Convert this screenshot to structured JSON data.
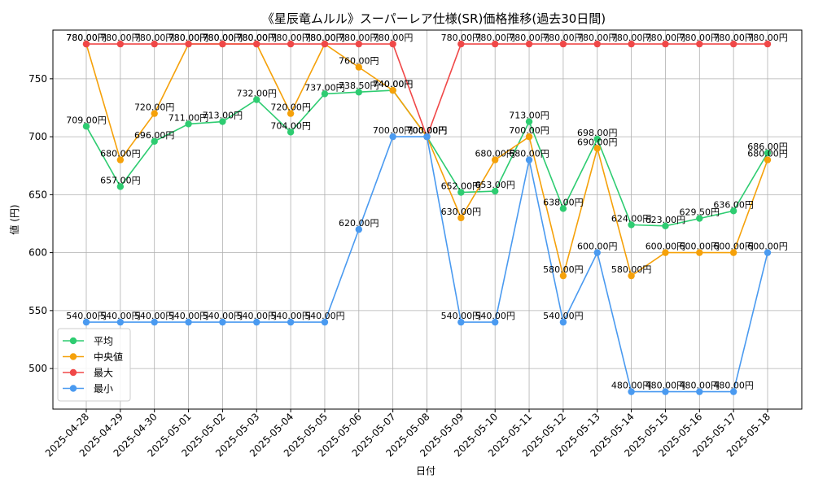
{
  "chart_data": {
    "type": "line",
    "title": "《星辰竜ムルル》スーパーレア仕様(SR)価格推移(過去30日間)",
    "xlabel": "日付",
    "ylabel": "値 (円)",
    "ylim": [
      465,
      792
    ],
    "yticks": [
      500,
      550,
      600,
      650,
      700,
      750
    ],
    "grid": true,
    "legend_position": "bottom-left",
    "value_suffix": "円",
    "categories": [
      "2025-04-28",
      "2025-04-29",
      "2025-04-30",
      "2025-05-01",
      "2025-05-02",
      "2025-05-03",
      "2025-05-04",
      "2025-05-05",
      "2025-05-06",
      "2025-05-07",
      "2025-05-08",
      "2025-05-09",
      "2025-05-10",
      "2025-05-11",
      "2025-05-12",
      "2025-05-13",
      "2025-05-14",
      "2025-05-15",
      "2025-05-16",
      "2025-05-17",
      "2025-05-18"
    ],
    "series": [
      {
        "name": "平均",
        "color": "#2ecc71",
        "values": [
          709,
          657,
          696,
          711,
          713,
          732,
          704,
          737,
          738.5,
          740,
          700,
          652,
          653,
          713,
          638,
          698,
          624,
          623,
          629.5,
          636,
          686
        ]
      },
      {
        "name": "中央値",
        "color": "#f5a10a",
        "values": [
          780,
          680,
          720,
          780,
          780,
          780,
          720,
          780,
          760,
          740,
          700,
          630,
          680,
          700,
          580,
          690,
          580,
          600,
          600,
          600,
          680
        ]
      },
      {
        "name": "最大",
        "color": "#f04848",
        "values": [
          780,
          780,
          780,
          780,
          780,
          780,
          780,
          780,
          780,
          780,
          700,
          780,
          780,
          780,
          780,
          780,
          780,
          780,
          780,
          780,
          780
        ]
      },
      {
        "name": "最小",
        "color": "#4a9af0",
        "values": [
          540,
          540,
          540,
          540,
          540,
          540,
          540,
          540,
          620,
          700,
          700,
          540,
          540,
          680,
          540,
          600,
          480,
          480,
          480,
          480,
          600
        ]
      }
    ]
  }
}
